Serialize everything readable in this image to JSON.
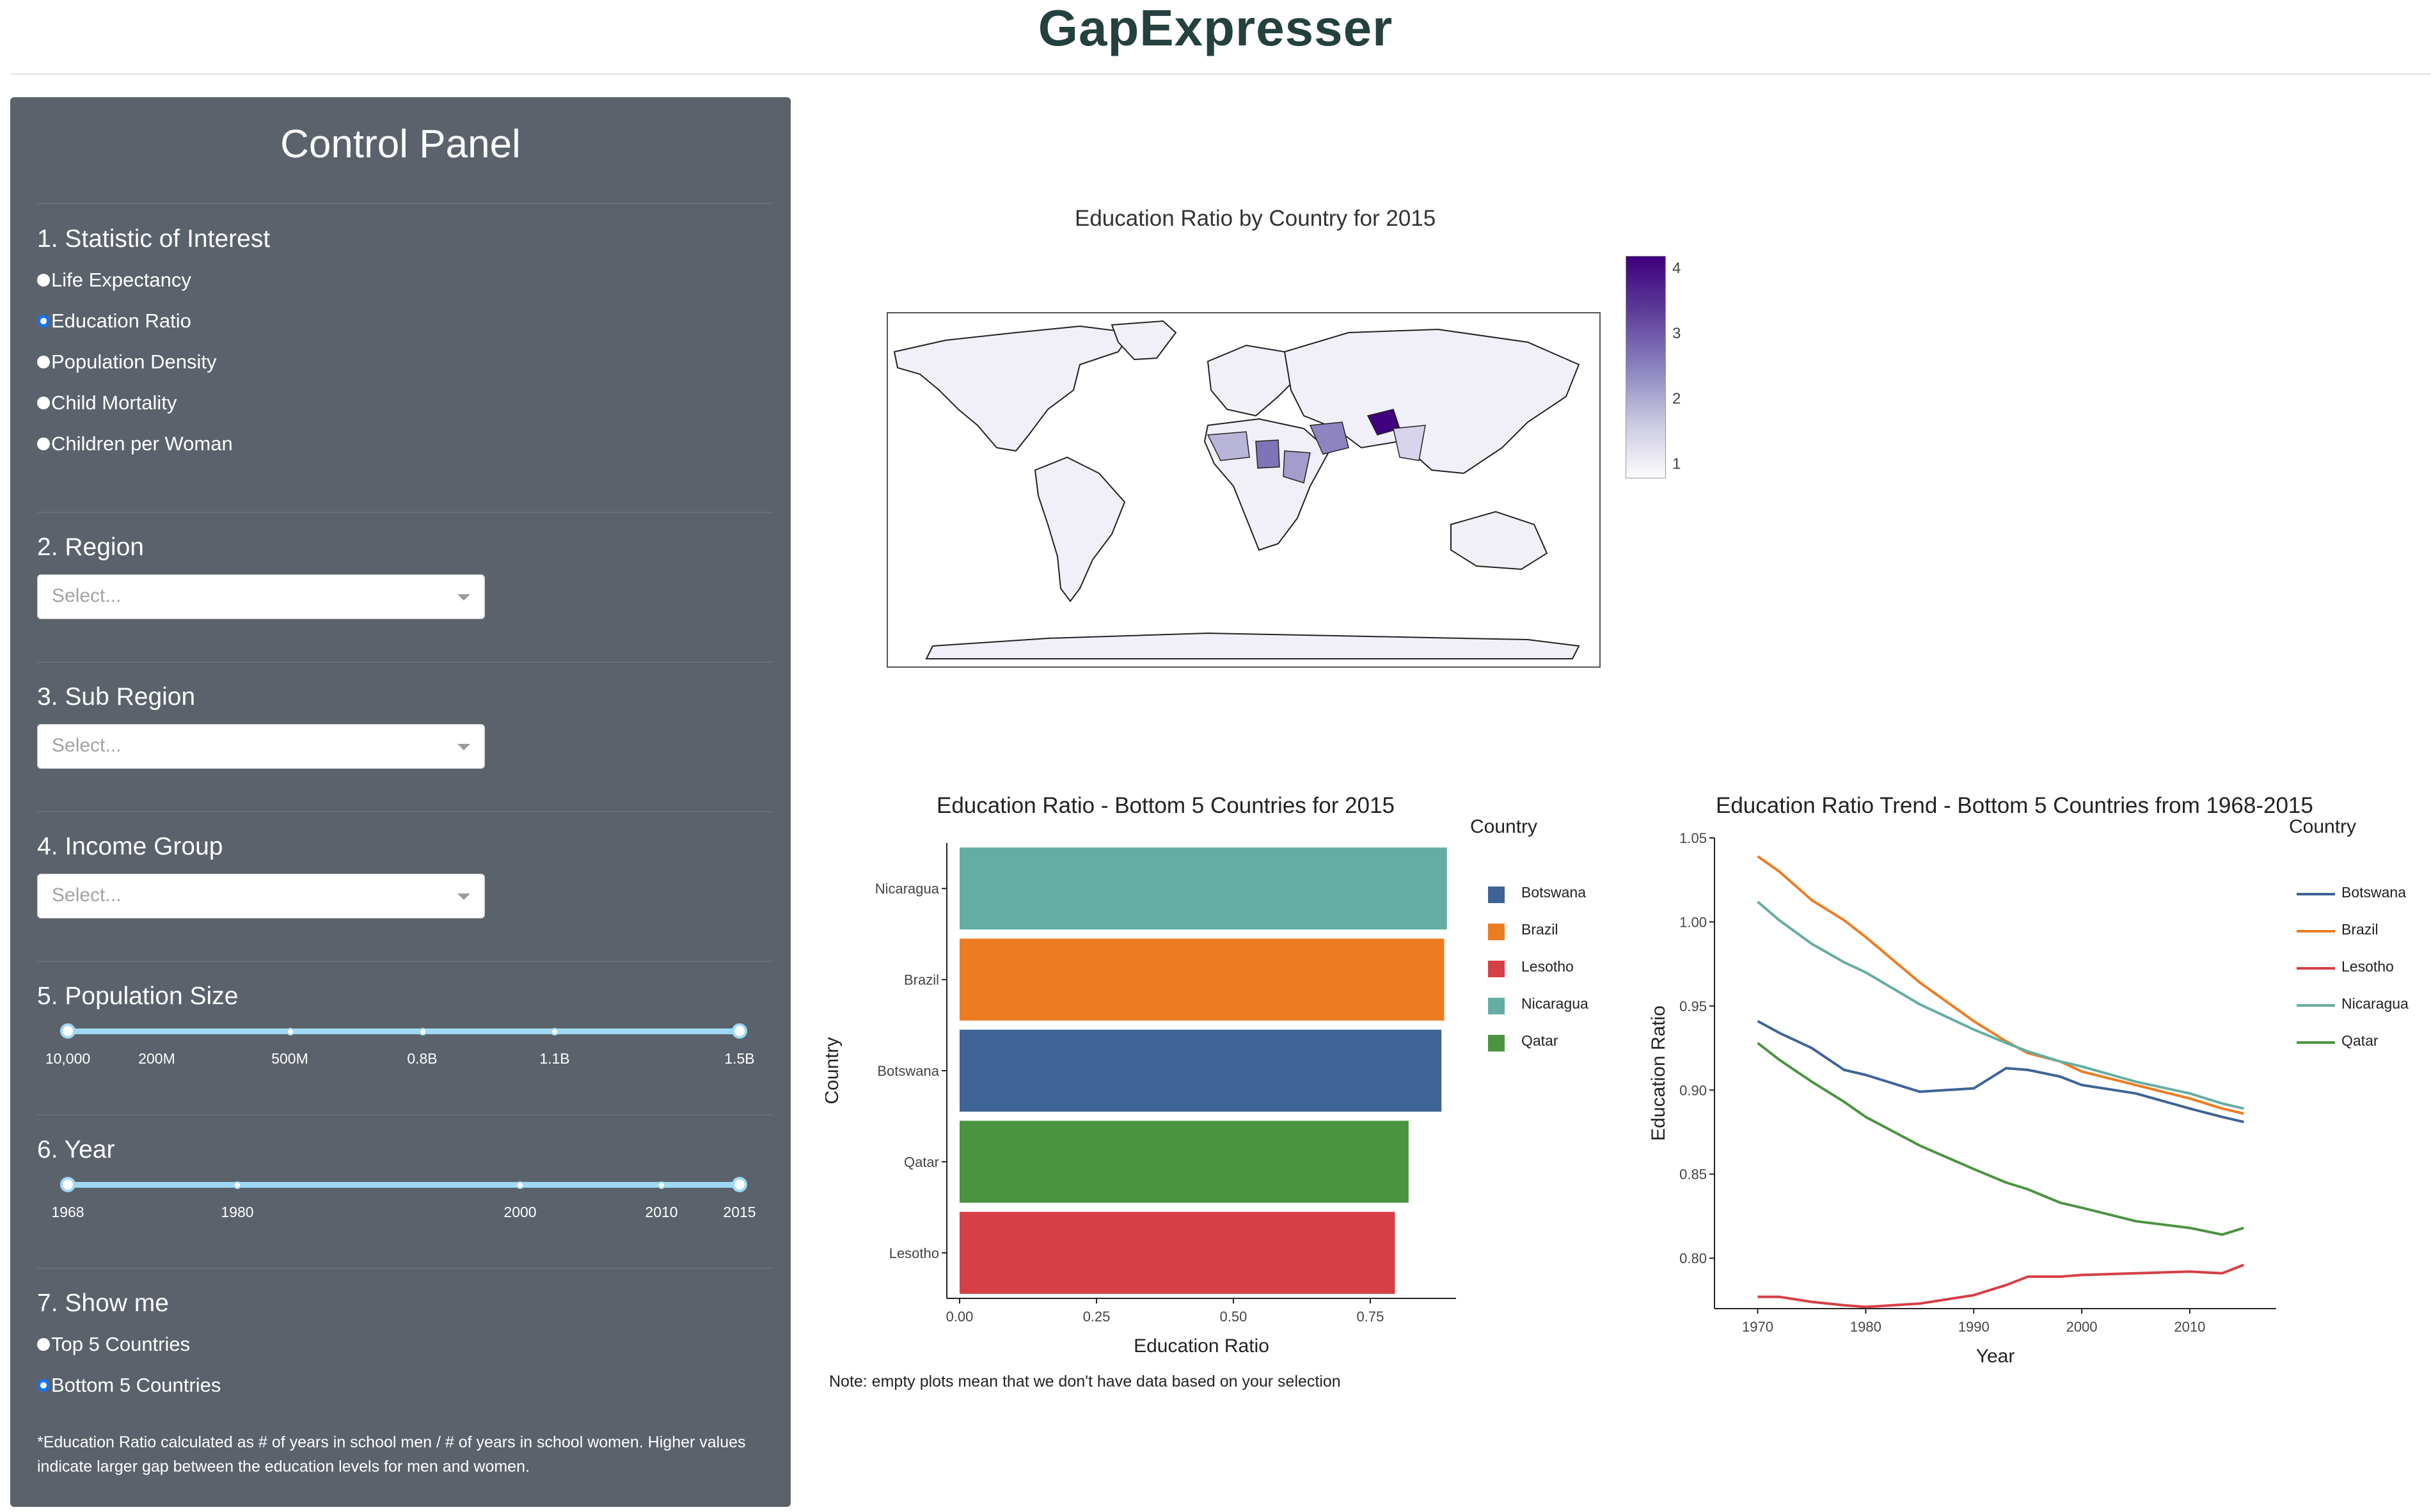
{
  "app": {
    "title": "GapExpresser"
  },
  "panel": {
    "title": "Control Panel",
    "statistic": {
      "label": "1. Statistic of Interest",
      "options": [
        "Life Expectancy",
        "Education Ratio",
        "Population Density",
        "Child Mortality",
        "Children per Woman"
      ],
      "selected": "Education Ratio"
    },
    "region": {
      "label": "2. Region",
      "placeholder": "Select..."
    },
    "sub_region": {
      "label": "3. Sub Region",
      "placeholder": "Select..."
    },
    "income_group": {
      "label": "4. Income Group",
      "placeholder": "Select..."
    },
    "population_size": {
      "label": "5. Population Size",
      "marks": [
        "10,000",
        "200M",
        "500M",
        "0.8B",
        "1.1B",
        "1.5B"
      ],
      "range": [
        "10,000",
        "1.5B"
      ]
    },
    "year": {
      "label": "6. Year",
      "marks": [
        "1968",
        "1980",
        "2000",
        "2010",
        "2015"
      ],
      "range": [
        "1968",
        "2015"
      ]
    },
    "show_me": {
      "label": "7. Show me",
      "options": [
        "Top 5 Countries",
        "Bottom 5 Countries"
      ],
      "selected": "Bottom 5 Countries"
    },
    "footnote": "*Education Ratio calculated as # of years in school men / # of years in school women. Higher values indicate larger gap between the education levels for men and women."
  },
  "map": {
    "title": "Education Ratio by Country for 2015",
    "colorbar_ticks": [
      "4",
      "3",
      "2",
      "1"
    ],
    "colors": {
      "low": "#fcfbfd",
      "high": "#3f007d"
    }
  },
  "note": "Note: empty plots mean that we don't have data based on your selection",
  "chart_data": [
    {
      "type": "bar",
      "title": "Education Ratio - Bottom 5 Countries for 2015",
      "orientation": "horizontal",
      "xlabel": "Education Ratio",
      "ylabel": "Country",
      "categories": [
        "Nicaragua",
        "Brazil",
        "Botswana",
        "Qatar",
        "Lesotho"
      ],
      "values": [
        0.89,
        0.885,
        0.88,
        0.82,
        0.795
      ],
      "colors": [
        "#65ada3",
        "#ec7c22",
        "#3e6497",
        "#4a9440",
        "#d63f46"
      ],
      "xticks": [
        "0.00",
        "0.25",
        "0.50",
        "0.75"
      ],
      "xlim": [
        0,
        0.93
      ],
      "legend": {
        "title": "Country",
        "entries": [
          "Botswana",
          "Brazil",
          "Lesotho",
          "Nicaragua",
          "Qatar"
        ],
        "colors": [
          "#3e6497",
          "#ec7c22",
          "#d63f46",
          "#65ada3",
          "#4a9440"
        ]
      }
    },
    {
      "type": "line",
      "title": "Education Ratio Trend - Bottom 5 Countries from 1968-2015",
      "xlabel": "Year",
      "ylabel": "Education Ratio",
      "xticks": [
        "1970",
        "1980",
        "1990",
        "2000",
        "2010"
      ],
      "yticks": [
        "0.80",
        "0.85",
        "0.90",
        "0.95",
        "1.00",
        "1.05"
      ],
      "xlim": [
        1966,
        2018
      ],
      "ylim": [
        0.77,
        1.05
      ],
      "x": [
        1970,
        1972,
        1975,
        1978,
        1980,
        1985,
        1990,
        1993,
        1995,
        1998,
        2000,
        2005,
        2010,
        2013,
        2015
      ],
      "series": [
        {
          "name": "Botswana",
          "color": "#3e6497",
          "values": [
            0.941,
            0.934,
            0.925,
            0.912,
            0.909,
            0.899,
            0.901,
            0.913,
            0.912,
            0.908,
            0.903,
            0.898,
            0.889,
            0.884,
            0.881
          ]
        },
        {
          "name": "Brazil",
          "color": "#ec7c22",
          "values": [
            1.039,
            1.03,
            1.013,
            1.001,
            0.991,
            0.964,
            0.941,
            0.929,
            0.922,
            0.917,
            0.911,
            0.903,
            0.895,
            0.889,
            0.886
          ]
        },
        {
          "name": "Lesotho",
          "color": "#d63f46",
          "values": [
            0.777,
            0.777,
            0.774,
            0.772,
            0.771,
            0.773,
            0.778,
            0.784,
            0.789,
            0.789,
            0.79,
            0.791,
            0.792,
            0.791,
            0.796
          ]
        },
        {
          "name": "Nicaragua",
          "color": "#65ada3",
          "values": [
            1.012,
            1.001,
            0.987,
            0.976,
            0.97,
            0.951,
            0.936,
            0.928,
            0.923,
            0.917,
            0.914,
            0.905,
            0.898,
            0.892,
            0.889
          ]
        },
        {
          "name": "Qatar",
          "color": "#4a9440",
          "values": [
            0.928,
            0.918,
            0.905,
            0.893,
            0.884,
            0.867,
            0.853,
            0.845,
            0.841,
            0.833,
            0.83,
            0.822,
            0.818,
            0.814,
            0.818
          ]
        }
      ],
      "legend": {
        "title": "Country",
        "entries": [
          "Botswana",
          "Brazil",
          "Lesotho",
          "Nicaragua",
          "Qatar"
        ],
        "colors": [
          "#3e6497",
          "#ec7c22",
          "#d63f46",
          "#65ada3",
          "#4a9440"
        ]
      }
    }
  ]
}
